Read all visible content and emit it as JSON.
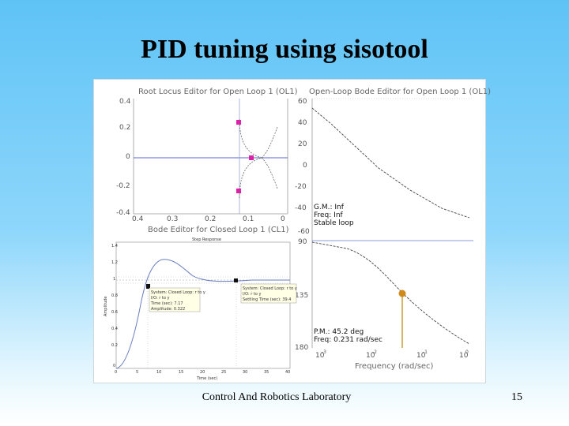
{
  "slide": {
    "title": "PID tuning using sisotool",
    "footer_lab": "Control And Robotics Laboratory",
    "page_number": "15"
  },
  "root_locus": {
    "title": "Root Locus Editor for Open Loop 1 (OL1)",
    "y_ticks": [
      "0.4",
      "0.2",
      "0",
      "-0.2",
      "-0.4"
    ],
    "x_ticks": [
      "0.4",
      "0.3",
      "0.2",
      "0.1",
      "0"
    ]
  },
  "bode_open": {
    "title": "Open-Loop Bode Editor for Open Loop 1 (OL1)",
    "mag_ticks": [
      "60",
      "40",
      "20",
      "0",
      "-20",
      "-40",
      "-60"
    ],
    "phase_ticks": [
      "90",
      "135",
      "180"
    ],
    "freq_ticks": [
      "10",
      "10",
      "10",
      "10"
    ],
    "freq_exps": [
      "-3",
      "-2",
      "-1",
      "0"
    ],
    "gm_text": "G.M.: Inf",
    "gm_freq_text": "Freq: Inf",
    "stable_text": "Stable loop",
    "pm_text": "P.M.: 45.2 deg",
    "pm_freq_text": "Freq: 0.231 rad/sec",
    "xlabel": "Frequency (rad/sec)"
  },
  "closed_loop": {
    "title": "Bode Editor for Closed Loop 1 (CL1)"
  },
  "step_response": {
    "title": "Step Response",
    "ylabel": "Amplitude",
    "xlabel": "Time (sec)",
    "y_ticks": [
      "1.4",
      "1.2",
      "1",
      "0.8",
      "0.6",
      "0.4",
      "0.2",
      "0"
    ],
    "x_ticks": [
      "0",
      "5",
      "10",
      "15",
      "20",
      "25",
      "30",
      "35",
      "40"
    ],
    "datatip_peak": [
      "System: Closed Loop: r to y",
      "I/O: r to y",
      "Time (sec): 7.17",
      "Amplitude: 0.322"
    ],
    "datatip_settle": [
      "System: Closed Loop: r to y",
      "I/O: r to y",
      "Settling Time (sec): 39.4"
    ]
  },
  "colors": {
    "accent_blue": "#5566cc",
    "pole_magenta": "#dd22aa",
    "marker_orange": "#d08a1a"
  }
}
